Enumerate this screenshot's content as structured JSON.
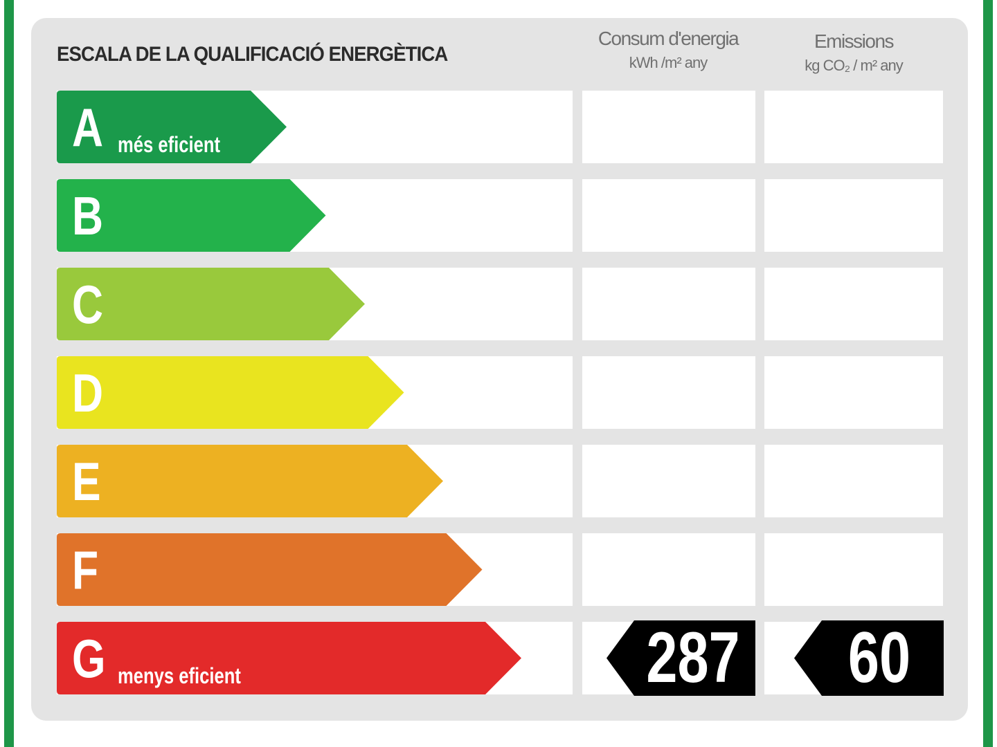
{
  "chart_data": {
    "type": "table",
    "title": "ESCALA DE LA QUALIFICACIÓ ENERGÈTICA",
    "columns": {
      "consumption": {
        "label": "Consum d'energia",
        "unit": "kWh /m² any"
      },
      "emissions": {
        "label": "Emissions",
        "unit": "kg CO₂ / m² any"
      }
    },
    "classes": [
      {
        "letter": "A",
        "label": "més eficient",
        "color": "#1a9a4b"
      },
      {
        "letter": "B",
        "label": "",
        "color": "#23b24b"
      },
      {
        "letter": "C",
        "label": "",
        "color": "#99c93c"
      },
      {
        "letter": "D",
        "label": "",
        "color": "#e9e41f"
      },
      {
        "letter": "E",
        "label": "",
        "color": "#edb122"
      },
      {
        "letter": "F",
        "label": "",
        "color": "#e0732a"
      },
      {
        "letter": "G",
        "label": "menys eficient",
        "color": "#e32a2a"
      }
    ],
    "rating": {
      "class": "G",
      "consumption_value": "287",
      "emissions_value": "60"
    }
  },
  "colors": {
    "frame": "#1e9648",
    "panel": "#e4e4e4",
    "indicator": "#000000"
  }
}
